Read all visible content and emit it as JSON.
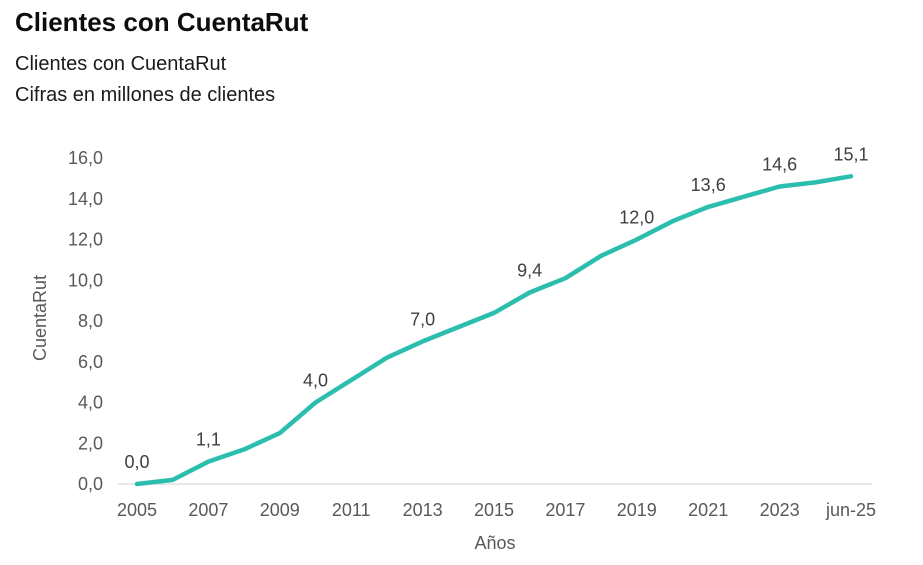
{
  "header": {
    "title": "Clientes con CuentaRut",
    "subtitle1": "Clientes con CuentaRut",
    "subtitle2": "Cifras en millones de clientes"
  },
  "chart_data": {
    "type": "line",
    "title": "Clientes con CuentaRut",
    "subtitle": "Cifras en millones de clientes",
    "xlabel": "Años",
    "ylabel": "CuentaRut",
    "ylim": [
      0,
      16
    ],
    "ytick_step": 2,
    "grid": false,
    "legend": false,
    "colors": {
      "line": "#2BBEAE",
      "axis_line": "#D9D9D9",
      "tick_label": "#595959",
      "axis_title": "#595959",
      "data_label": "#404040"
    },
    "categories": [
      "2005",
      "2006",
      "2007",
      "2008",
      "2009",
      "2010",
      "2011",
      "2012",
      "2013",
      "2014",
      "2015",
      "2016",
      "2017",
      "2018",
      "2019",
      "2020",
      "2021",
      "2022",
      "2023",
      "2024",
      "jun-25"
    ],
    "values": [
      0.0,
      0.2,
      1.1,
      1.7,
      2.5,
      4.0,
      5.1,
      6.2,
      7.0,
      7.7,
      8.4,
      9.4,
      10.1,
      11.2,
      12.0,
      12.9,
      13.6,
      14.1,
      14.6,
      14.8,
      15.1
    ],
    "x_tick_labels": [
      "2005",
      "2007",
      "2009",
      "2011",
      "2013",
      "2015",
      "2017",
      "2019",
      "2021",
      "2023",
      "jun-25"
    ],
    "y_tick_labels": [
      "0,0",
      "2,0",
      "4,0",
      "6,0",
      "8,0",
      "10,0",
      "12,0",
      "14,0",
      "16,0"
    ],
    "data_labels": [
      {
        "index": 0,
        "text": "0,0"
      },
      {
        "index": 2,
        "text": "1,1"
      },
      {
        "index": 5,
        "text": "4,0"
      },
      {
        "index": 8,
        "text": "7,0"
      },
      {
        "index": 11,
        "text": "9,4"
      },
      {
        "index": 14,
        "text": "12,0"
      },
      {
        "index": 16,
        "text": "13,6"
      },
      {
        "index": 18,
        "text": "14,6"
      },
      {
        "index": 20,
        "text": "15,1"
      }
    ]
  }
}
